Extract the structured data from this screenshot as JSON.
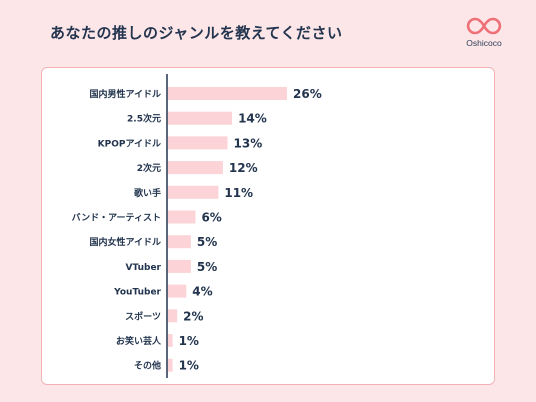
{
  "title": "あなたの推しのジャンルを教えてください",
  "logo": {
    "text": "Oshicoco",
    "icon": "infinity-logo-icon",
    "color": "#ee6f76"
  },
  "colors": {
    "bar": "#fcd3d6",
    "axis": "#22344e",
    "text": "#22344e"
  },
  "chart_data": {
    "type": "bar",
    "orientation": "horizontal",
    "title": "あなたの推しのジャンルを教えてください",
    "categories": [
      "国内男性アイドル",
      "2.5次元",
      "KPOPアイドル",
      "2次元",
      "歌い手",
      "バンド・アーティスト",
      "国内女性アイドル",
      "VTuber",
      "YouTuber",
      "スポーツ",
      "お笑い芸人",
      "その他"
    ],
    "values": [
      26,
      14,
      13,
      12,
      11,
      6,
      5,
      5,
      4,
      2,
      1,
      1
    ],
    "value_labels": [
      "26%",
      "14%",
      "13%",
      "12%",
      "11%",
      "6%",
      "5%",
      "5%",
      "4%",
      "2%",
      "1%",
      "1%"
    ],
    "unit": "%",
    "xlabel": "",
    "ylabel": "",
    "xlim": [
      0,
      26
    ],
    "grid": false
  }
}
